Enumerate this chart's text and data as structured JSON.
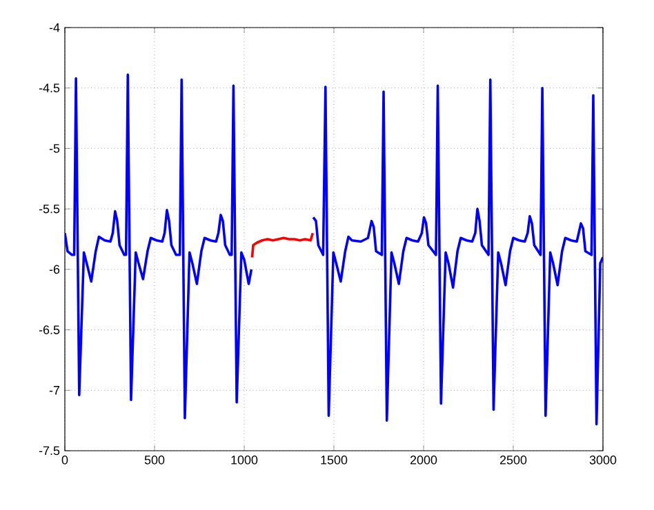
{
  "chart_data": {
    "type": "line",
    "xlim": [
      0,
      3000
    ],
    "ylim": [
      -7.5,
      -4
    ],
    "xticks": [
      0,
      500,
      1000,
      1500,
      2000,
      2500,
      3000
    ],
    "yticks": [
      -7.5,
      -7,
      -6.5,
      -6,
      -5.5,
      -5,
      -4.5,
      -4
    ],
    "grid": true,
    "series": [
      {
        "color": "#0000ff",
        "x": [
          0,
          15,
          40,
          52,
          62,
          80,
          106,
          122,
          147,
          172,
          190,
          222,
          254,
          267,
          280,
          292,
          305,
          331,
          341,
          351,
          369,
          395,
          411,
          436,
          461,
          479,
          511,
          543,
          556,
          569,
          581,
          594,
          620,
          641,
          651,
          669,
          695,
          711,
          736,
          761,
          779,
          811,
          843,
          856,
          869,
          881,
          894,
          920,
          930,
          940,
          958,
          984,
          1000,
          1025,
          1040,
          1042,
          1385,
          1400,
          1413,
          1440,
          1453,
          1471,
          1497,
          1513,
          1538,
          1563,
          1581,
          1600,
          1650,
          1690,
          1710,
          1722,
          1735,
          1767,
          1777,
          1795,
          1821,
          1837,
          1862,
          1887,
          1905,
          1937,
          1969,
          1990,
          2002,
          2014,
          2027,
          2069,
          2079,
          2097,
          2123,
          2139,
          2164,
          2189,
          2207,
          2239,
          2271,
          2288,
          2300,
          2312,
          2325,
          2362,
          2372,
          2390,
          2416,
          2432,
          2457,
          2482,
          2500,
          2532,
          2564,
          2580,
          2592,
          2604,
          2617,
          2652,
          2662,
          2680,
          2706,
          2722,
          2747,
          2772,
          2790,
          2822,
          2854,
          2865,
          2877,
          2889,
          2902,
          2936,
          2946,
          2964,
          2985,
          3000
        ],
        "values": [
          -5.7,
          -5.85,
          -5.88,
          -5.88,
          -4.42,
          -7.04,
          -5.86,
          -5.95,
          -6.1,
          -5.85,
          -5.73,
          -5.76,
          -5.77,
          -5.7,
          -5.52,
          -5.6,
          -5.8,
          -5.88,
          -5.88,
          -4.39,
          -7.08,
          -5.86,
          -5.95,
          -6.08,
          -5.85,
          -5.74,
          -5.76,
          -5.77,
          -5.7,
          -5.51,
          -5.6,
          -5.8,
          -5.88,
          -5.88,
          -4.43,
          -7.23,
          -5.86,
          -5.95,
          -6.12,
          -5.85,
          -5.74,
          -5.76,
          -5.77,
          -5.7,
          -5.55,
          -5.6,
          -5.8,
          -5.88,
          -5.88,
          -4.48,
          -7.1,
          -5.86,
          -5.92,
          -6.12,
          -6.0,
          null,
          -5.57,
          -5.6,
          -5.8,
          -5.88,
          -4.49,
          -7.21,
          -5.86,
          -5.95,
          -6.1,
          -5.85,
          -5.73,
          -5.76,
          -5.77,
          -5.74,
          -5.6,
          -5.65,
          -5.85,
          -5.88,
          -4.53,
          -7.25,
          -5.86,
          -5.95,
          -6.12,
          -5.85,
          -5.74,
          -5.76,
          -5.77,
          -5.7,
          -5.57,
          -5.62,
          -5.8,
          -5.88,
          -4.48,
          -7.11,
          -5.86,
          -5.95,
          -6.15,
          -5.85,
          -5.74,
          -5.76,
          -5.77,
          -5.7,
          -5.5,
          -5.6,
          -5.8,
          -5.88,
          -4.43,
          -7.16,
          -5.86,
          -5.95,
          -6.13,
          -5.85,
          -5.74,
          -5.76,
          -5.77,
          -5.7,
          -5.56,
          -5.62,
          -5.8,
          -5.88,
          -4.5,
          -7.21,
          -5.86,
          -5.95,
          -6.13,
          -5.85,
          -5.74,
          -5.76,
          -5.77,
          -5.7,
          -5.62,
          -5.66,
          -5.85,
          -5.88,
          -4.56,
          -7.28,
          -5.95,
          -5.9
        ]
      },
      {
        "color": "#ff0000",
        "x": [
          1044,
          1050,
          1070,
          1100,
          1130,
          1160,
          1190,
          1220,
          1250,
          1280,
          1310,
          1340,
          1370,
          1382
        ],
        "values": [
          -5.9,
          -5.8,
          -5.78,
          -5.76,
          -5.75,
          -5.76,
          -5.75,
          -5.74,
          -5.75,
          -5.75,
          -5.76,
          -5.75,
          -5.76,
          -5.7
        ]
      }
    ]
  }
}
